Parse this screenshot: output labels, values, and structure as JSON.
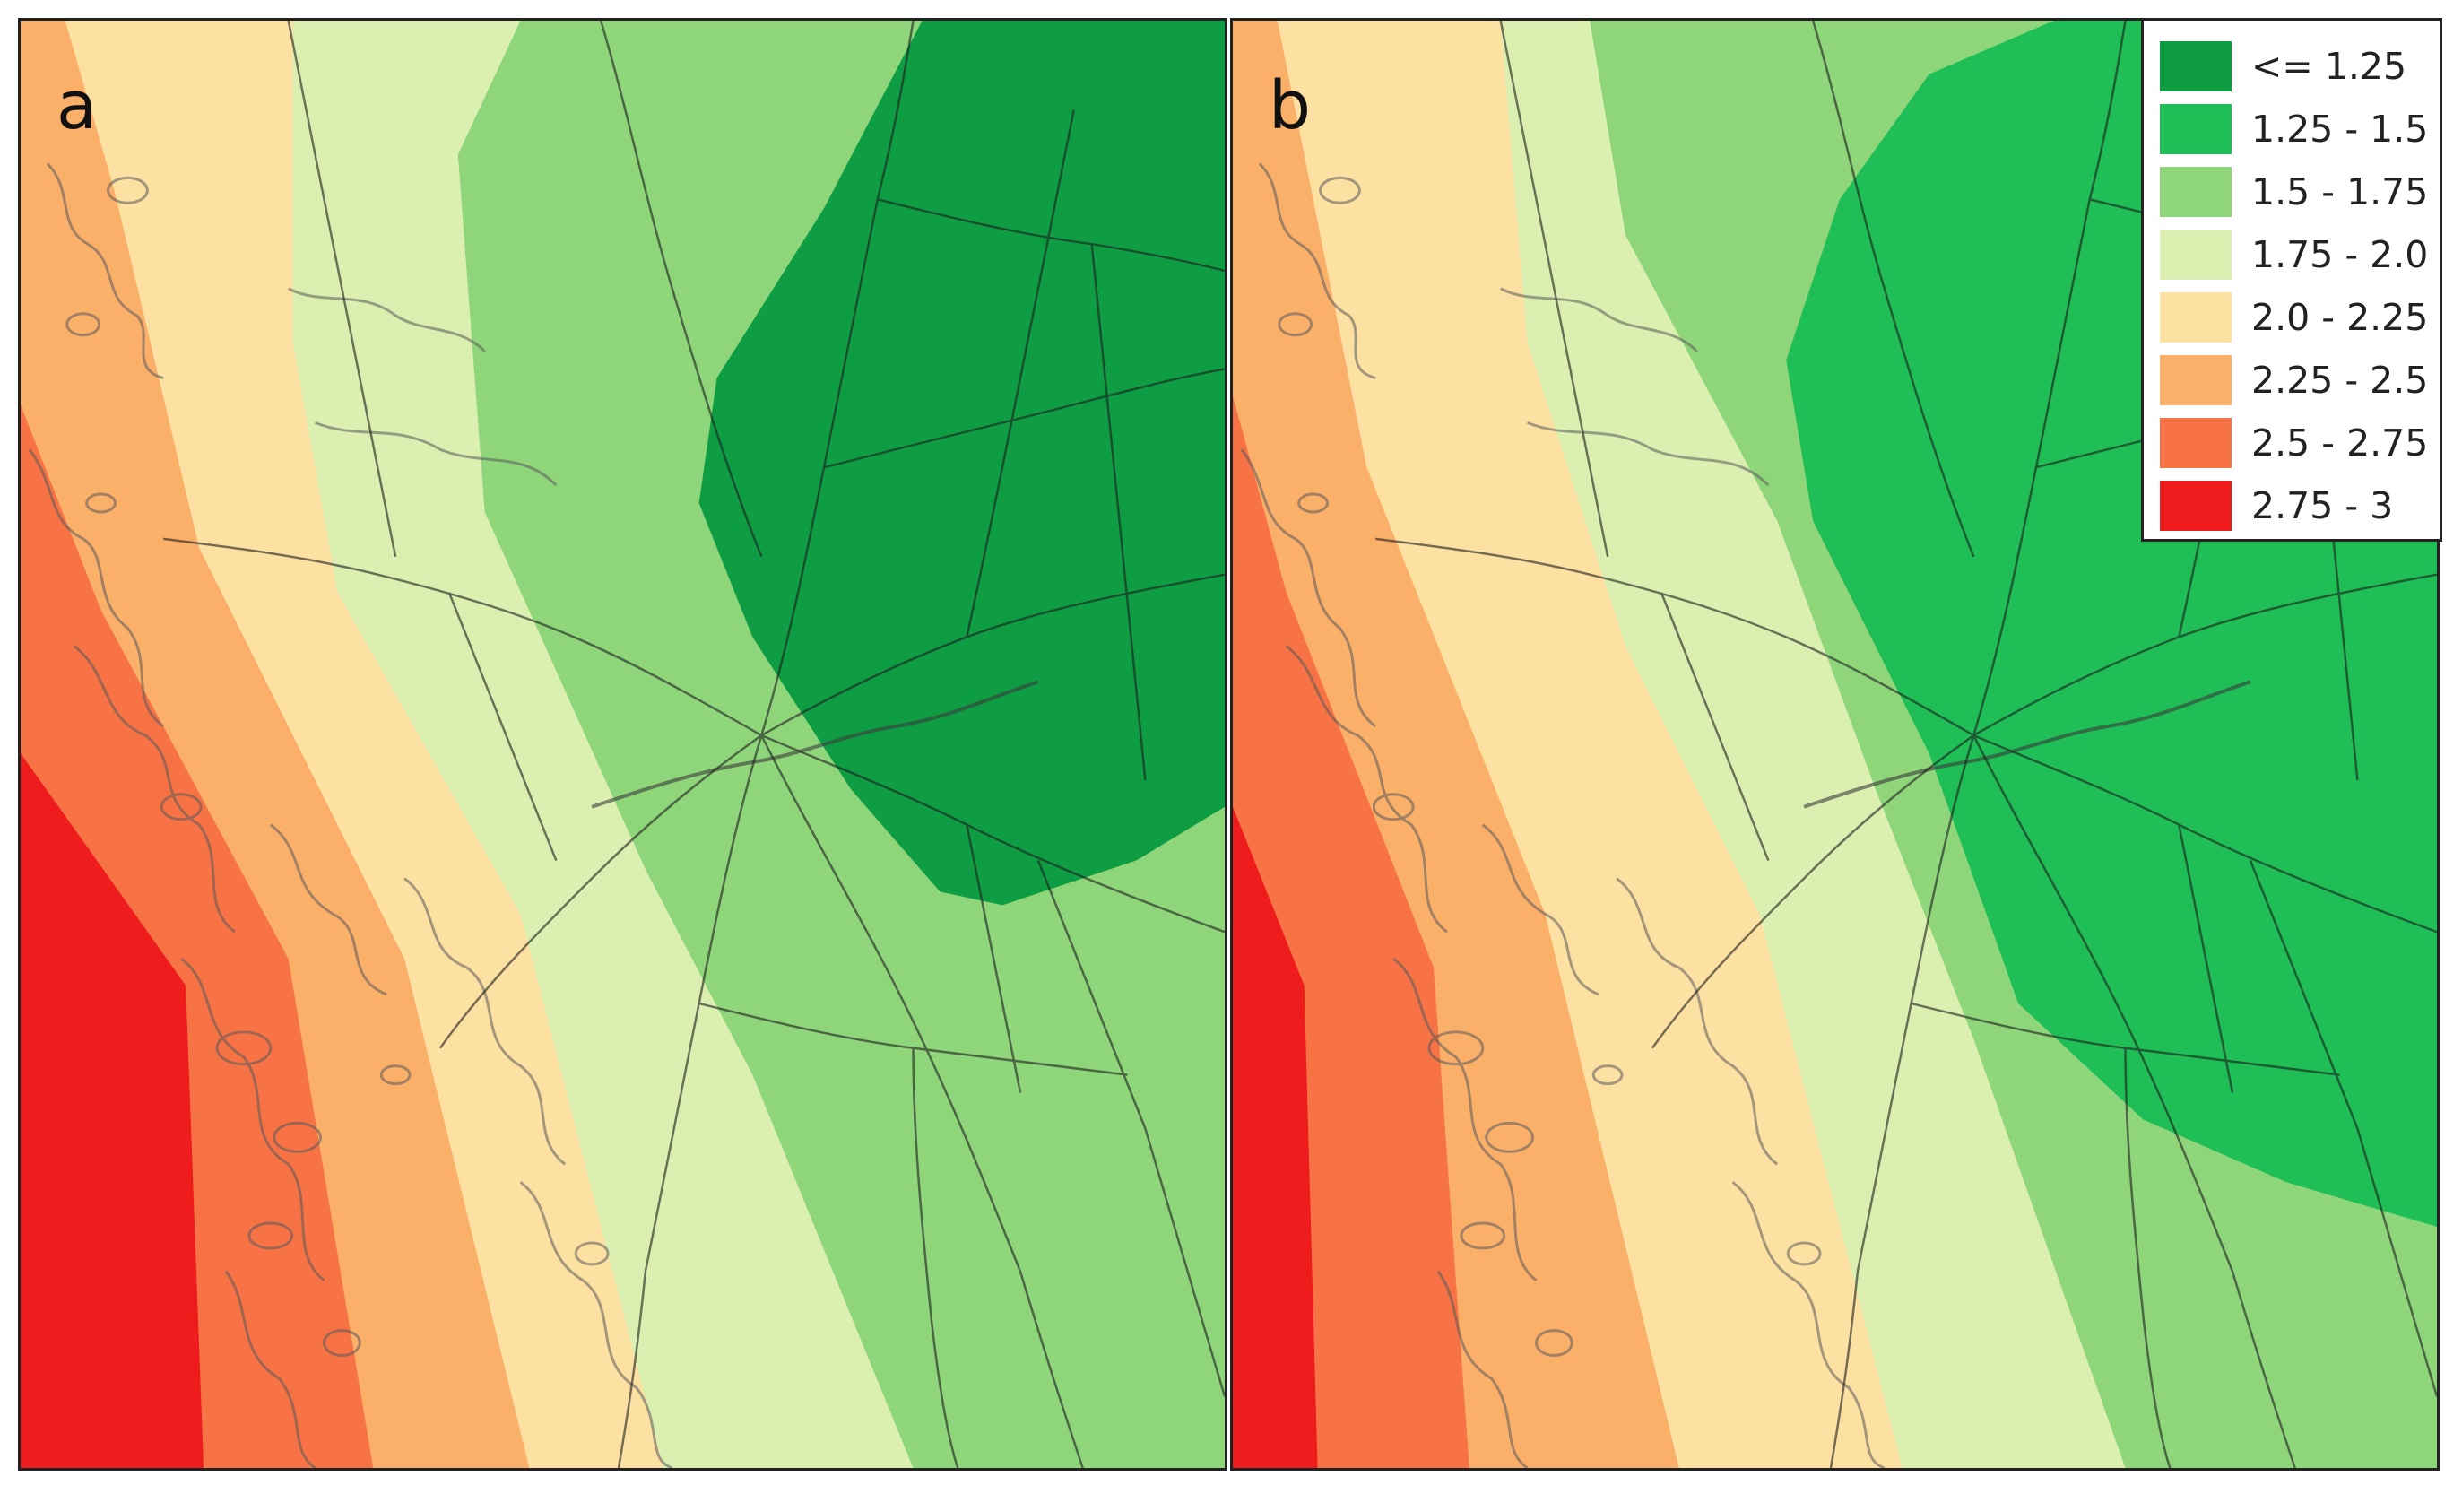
{
  "panels": [
    {
      "id": "a",
      "label": "a"
    },
    {
      "id": "b",
      "label": "b"
    }
  ],
  "legend": {
    "items": [
      {
        "label": "<= 1.25",
        "color": "#0f9d44"
      },
      {
        "label": "1.25 - 1.5",
        "color": "#1fbe57"
      },
      {
        "label": "1.5 - 1.75",
        "color": "#8fd57a"
      },
      {
        "label": "1.75 - 2.0",
        "color": "#dbefb0"
      },
      {
        "label": "2.0 - 2.25",
        "color": "#fde1a3"
      },
      {
        "label": "2.25 - 2.5",
        "color": "#fbb06a"
      },
      {
        "label": "2.5 - 2.75",
        "color": "#f77345"
      },
      {
        "label": "2.75 - 3",
        "color": "#ee1c1c"
      }
    ]
  }
}
